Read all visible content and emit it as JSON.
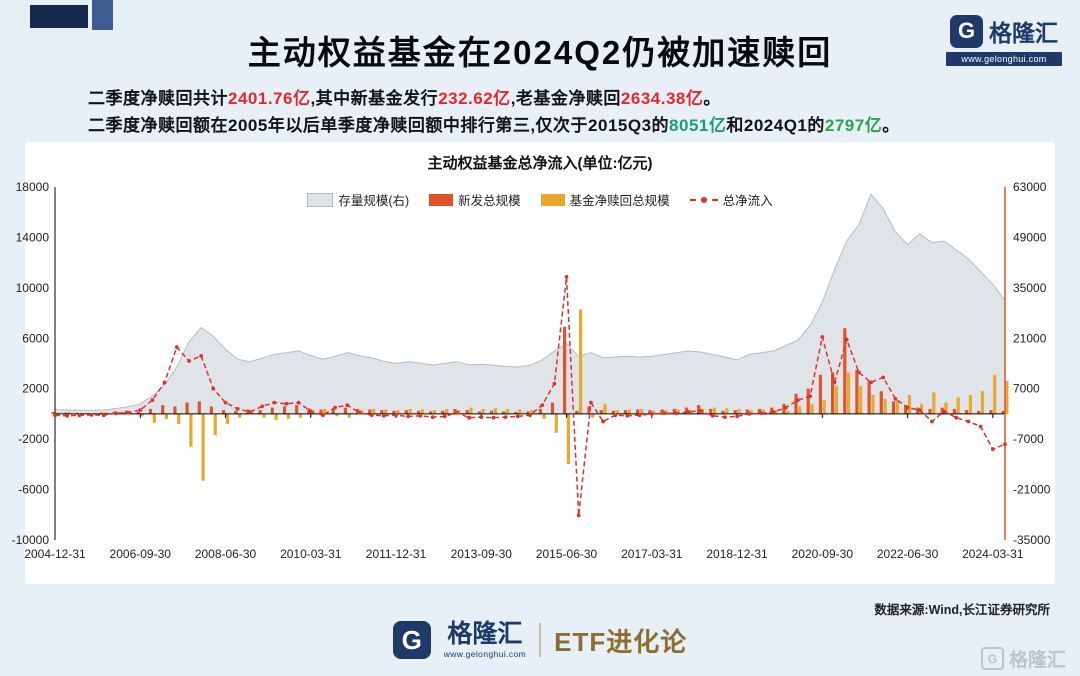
{
  "header": {
    "title": "主动权益基金在2024Q2仍被加速赎回"
  },
  "brand": {
    "g": "G",
    "name": "格隆汇",
    "url": "www.gelonghui.com",
    "sub_brand": "ETF进化论"
  },
  "subtitles": {
    "line1": [
      {
        "t": "二季度净赎回共计",
        "c": "#131313"
      },
      {
        "t": "2401.76亿",
        "c": "#e8262d"
      },
      {
        "t": ",其中新基金发行",
        "c": "#131313"
      },
      {
        "t": "232.62亿",
        "c": "#e8262d"
      },
      {
        "t": ",老基金净赎回",
        "c": "#131313"
      },
      {
        "t": "2634.38亿",
        "c": "#e8262d"
      },
      {
        "t": "。",
        "c": "#131313"
      }
    ],
    "line2": [
      {
        "t": "二季度净赎回额在2005年以后单季度净赎回额中排行第三,仅次于2015Q3的",
        "c": "#131313"
      },
      {
        "t": "8051亿",
        "c": "#1c9d7c"
      },
      {
        "t": "和2024Q1的",
        "c": "#131313"
      },
      {
        "t": "2797亿",
        "c": "#2ca24e"
      },
      {
        "t": "。",
        "c": "#131313"
      }
    ]
  },
  "footer": {
    "source": "数据来源:Wind,长江证券研究所"
  },
  "colors": {
    "page_bg": "#e7eff7",
    "navy": "#1d3a6b",
    "number_red": "#e8262d",
    "teal_green": "#1c9d7c",
    "green": "#2ca24e",
    "etf_gold": "#8b6f2e",
    "area_fill": "#dfe4e9",
    "area_stroke": "#b3bdc6",
    "issuance_orange": "#e2532a",
    "redemption_gold": "#eaa72b",
    "netflow_red": "#e0312e"
  },
  "chart_data": {
    "type": "combo",
    "title": "主动权益基金总净流入(单位:亿元)",
    "left_axis": {
      "min": -10000,
      "max": 18000,
      "step": 4000
    },
    "right_axis": {
      "min": -35000,
      "max": 63000,
      "step": 14000
    },
    "x_tick_every": 7,
    "legend_position": "top-center",
    "grid": false,
    "categories": [
      "2004-12-31",
      "2005-03-31",
      "2005-06-30",
      "2005-09-30",
      "2005-12-31",
      "2006-03-31",
      "2006-06-30",
      "2006-09-30",
      "2006-12-31",
      "2007-03-31",
      "2007-06-30",
      "2007-09-30",
      "2007-12-31",
      "2008-03-31",
      "2008-06-30",
      "2008-09-30",
      "2008-12-31",
      "2009-03-31",
      "2009-06-30",
      "2009-09-30",
      "2009-12-31",
      "2010-03-31",
      "2010-06-30",
      "2010-09-30",
      "2010-12-31",
      "2011-03-31",
      "2011-06-30",
      "2011-09-30",
      "2011-12-31",
      "2012-03-31",
      "2012-06-30",
      "2012-09-30",
      "2012-12-31",
      "2013-03-31",
      "2013-06-30",
      "2013-09-30",
      "2013-12-31",
      "2014-03-31",
      "2014-06-30",
      "2014-09-30",
      "2014-12-31",
      "2015-03-31",
      "2015-06-30",
      "2015-09-30",
      "2015-12-31",
      "2016-03-31",
      "2016-06-30",
      "2016-09-30",
      "2016-12-31",
      "2017-03-31",
      "2017-06-30",
      "2017-09-30",
      "2017-12-31",
      "2018-03-31",
      "2018-06-30",
      "2018-09-30",
      "2018-12-31",
      "2019-03-31",
      "2019-06-30",
      "2019-09-30",
      "2019-12-31",
      "2020-03-31",
      "2020-06-30",
      "2020-09-30",
      "2020-12-31",
      "2021-03-31",
      "2021-06-30",
      "2021-09-30",
      "2021-12-31",
      "2022-03-31",
      "2022-06-30",
      "2022-09-30",
      "2022-12-31",
      "2023-03-31",
      "2023-06-30",
      "2023-09-30",
      "2023-12-31",
      "2024-03-31",
      "2024-06-30"
    ],
    "series": [
      {
        "name": "存量规模(右)",
        "type": "area",
        "axis": "right",
        "color": "#dfe4e9",
        "stroke": "#b3bdc6",
        "values": [
          1200,
          1100,
          1000,
          1000,
          1100,
          1500,
          2000,
          2800,
          5000,
          8000,
          13000,
          20000,
          24000,
          21500,
          18000,
          15200,
          14500,
          15500,
          16500,
          17000,
          17500,
          16200,
          15200,
          16000,
          17000,
          16200,
          15600,
          14600,
          14000,
          14500,
          14100,
          13600,
          14000,
          14500,
          13600,
          13800,
          13500,
          13200,
          13000,
          13500,
          15000,
          17500,
          19500,
          16000,
          17000,
          15600,
          15800,
          16000,
          15800,
          16000,
          16500,
          17000,
          17500,
          17200,
          16500,
          15800,
          15000,
          16500,
          17000,
          17500,
          19000,
          20500,
          24500,
          31000,
          40000,
          48000,
          52500,
          61000,
          57000,
          50500,
          47000,
          50000,
          47500,
          48000,
          45500,
          43000,
          39500,
          36000,
          31500
        ]
      },
      {
        "name": "新发总规模",
        "type": "bar",
        "axis": "left",
        "color": "#e2532a",
        "values": [
          150,
          100,
          80,
          60,
          100,
          180,
          250,
          150,
          400,
          700,
          600,
          900,
          1000,
          600,
          300,
          250,
          350,
          300,
          500,
          600,
          700,
          450,
          350,
          400,
          500,
          400,
          350,
          300,
          250,
          300,
          250,
          200,
          250,
          400,
          300,
          200,
          250,
          200,
          150,
          200,
          400,
          900,
          6900,
          250,
          600,
          300,
          250,
          300,
          350,
          300,
          350,
          400,
          500,
          700,
          400,
          250,
          300,
          350,
          400,
          500,
          800,
          1600,
          2000,
          3100,
          3300,
          6800,
          3500,
          2600,
          1800,
          1000,
          700,
          500,
          400,
          500,
          400,
          300,
          250,
          300,
          233
        ]
      },
      {
        "name": "基金净赎回总规模",
        "type": "bar",
        "axis": "left",
        "color": "#eaa72b",
        "values": [
          120,
          150,
          100,
          80,
          120,
          150,
          200,
          -200,
          -700,
          -400,
          -800,
          -2600,
          -5300,
          -1700,
          -800,
          -300,
          200,
          -300,
          -500,
          -400,
          -300,
          300,
          400,
          -200,
          -300,
          300,
          400,
          350,
          300,
          400,
          350,
          300,
          400,
          300,
          500,
          400,
          450,
          400,
          350,
          300,
          -400,
          -1500,
          -3970,
          8300,
          -300,
          800,
          300,
          350,
          400,
          250,
          300,
          350,
          300,
          400,
          500,
          450,
          400,
          300,
          350,
          300,
          250,
          600,
          800,
          1100,
          2200,
          3300,
          2200,
          1500,
          1200,
          1100,
          1500,
          800,
          1700,
          900,
          1300,
          1500,
          1800,
          3100,
          2634
        ]
      },
      {
        "name": "总净流入",
        "type": "line",
        "axis": "left",
        "color": "#e0312e",
        "dashed": true,
        "values": [
          -100,
          -150,
          -120,
          -80,
          -100,
          50,
          100,
          300,
          1100,
          2500,
          5300,
          4200,
          4600,
          2000,
          900,
          400,
          150,
          600,
          900,
          800,
          900,
          200,
          -100,
          500,
          700,
          100,
          -100,
          -150,
          -100,
          -200,
          -150,
          -250,
          -200,
          100,
          -300,
          -250,
          -300,
          -250,
          -200,
          -100,
          700,
          2400,
          10870,
          -8051,
          900,
          -600,
          -100,
          -150,
          -100,
          0,
          50,
          50,
          150,
          250,
          -150,
          -250,
          -200,
          0,
          50,
          150,
          500,
          1100,
          1400,
          6100,
          2500,
          5900,
          3300,
          2500,
          2900,
          1200,
          500,
          300,
          -600,
          200,
          -300,
          -600,
          -1000,
          -2797,
          -2402
        ]
      }
    ]
  }
}
